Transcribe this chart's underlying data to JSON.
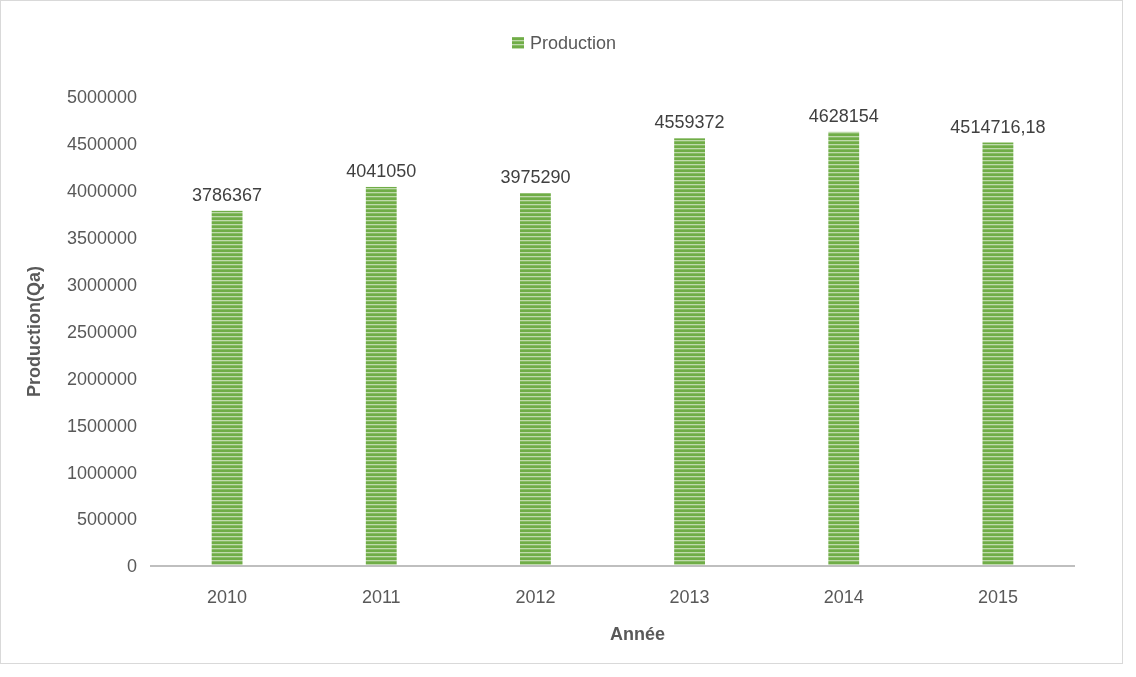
{
  "chart_data": {
    "type": "bar",
    "xlabel": "Année",
    "ylabel": "Production(Qa)",
    "categories": [
      "2010",
      "2011",
      "2012",
      "2013",
      "2014",
      "2015"
    ],
    "series": [
      {
        "name": "Production",
        "color": "#70ad47",
        "values": [
          3786367,
          4041050,
          3975290,
          4559372,
          4628154,
          4514716.18
        ],
        "value_labels": [
          "3786367",
          "4041050",
          "3975290",
          "4559372",
          "4628154",
          "4514716,18"
        ]
      }
    ],
    "ylim": [
      0,
      5000000
    ],
    "yticks": [
      0,
      500000,
      1000000,
      1500000,
      2000000,
      2500000,
      3000000,
      3500000,
      4000000,
      4500000,
      5000000
    ],
    "grid": false,
    "legend": "top"
  }
}
